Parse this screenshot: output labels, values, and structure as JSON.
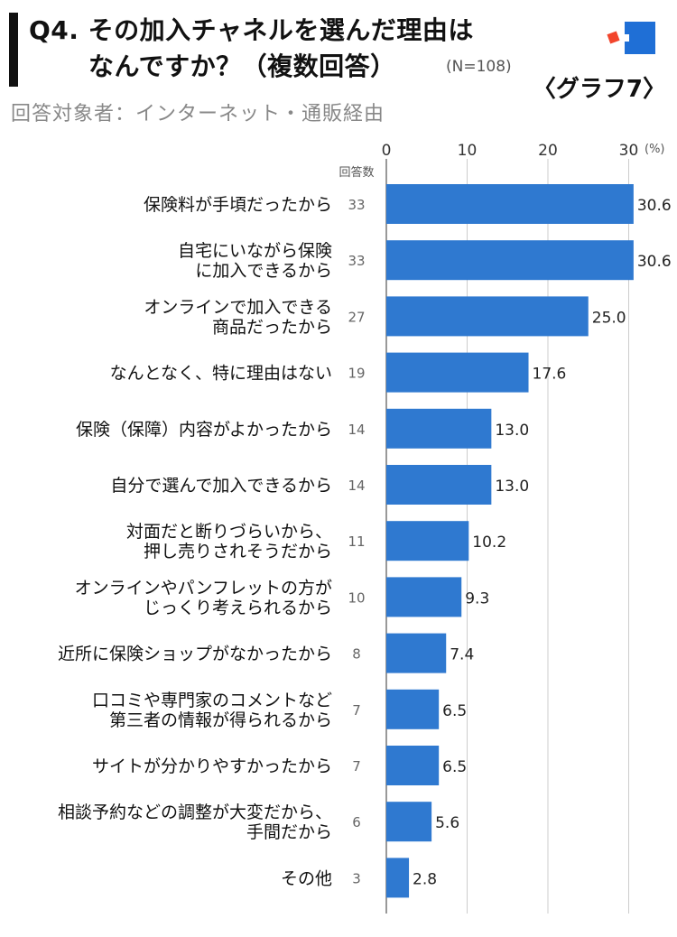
{
  "header": {
    "title_line1": "Q4. その加入チャネルを選んだ理由は",
    "title_line2": "なんですか？（複数回答）",
    "n_label": "(N=108)",
    "graph_label": "〈グラフ7〉",
    "target": "回答対象者：インターネット・通販経由"
  },
  "chart_data": {
    "type": "bar",
    "orientation": "horizontal",
    "count_header": "回答数",
    "unit": "(%)",
    "xlim": [
      0,
      30
    ],
    "xticks": [
      0,
      10,
      20,
      30
    ],
    "grid": true,
    "bar_color": "#2f79d0",
    "categories": [
      [
        "保険料が手頃だったから"
      ],
      [
        "自宅にいながら保険",
        "に加入できるから"
      ],
      [
        "オンラインで加入できる",
        "商品だったから"
      ],
      [
        "なんとなく、特に理由はない"
      ],
      [
        "保険（保障）内容がよかったから"
      ],
      [
        "自分で選んで加入できるから"
      ],
      [
        "対面だと断りづらいから、",
        "押し売りされそうだから"
      ],
      [
        "オンラインやパンフレットの方が",
        "じっくり考えられるから"
      ],
      [
        "近所に保険ショップがなかったから"
      ],
      [
        "口コミや専門家のコメントなど",
        "第三者の情報が得られるから"
      ],
      [
        "サイトが分かりやすかったから"
      ],
      [
        "相談予約などの調整が大変だから、",
        "手間だから"
      ],
      [
        "その他"
      ]
    ],
    "counts": [
      33,
      33,
      27,
      19,
      14,
      14,
      11,
      10,
      8,
      7,
      7,
      6,
      3
    ],
    "values": [
      30.6,
      30.6,
      25.0,
      17.6,
      13.0,
      13.0,
      10.2,
      9.3,
      7.4,
      6.5,
      6.5,
      5.6,
      2.8
    ]
  }
}
